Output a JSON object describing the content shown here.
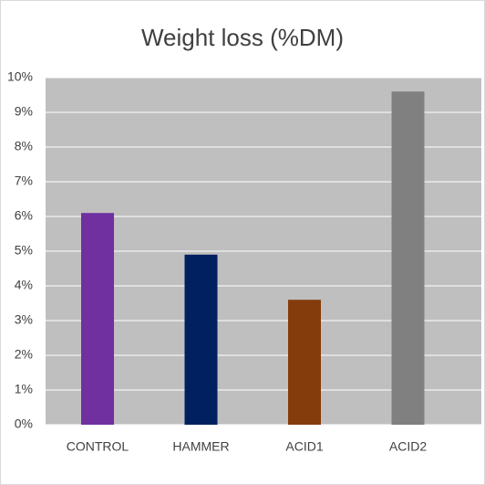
{
  "chart_data": {
    "type": "bar",
    "title": "Weight loss (%DM)",
    "categories": [
      "CONTROL",
      "HAMMER",
      "ACID1",
      "ACID2"
    ],
    "values": [
      6.1,
      4.9,
      3.6,
      9.6
    ],
    "colors": [
      "#7030a0",
      "#002060",
      "#843c0c",
      "#808080"
    ],
    "ylim": [
      0,
      10
    ],
    "yticks": [
      {
        "value": 0,
        "label": "0%"
      },
      {
        "value": 1,
        "label": "1%"
      },
      {
        "value": 2,
        "label": "2%"
      },
      {
        "value": 3,
        "label": "3%"
      },
      {
        "value": 4,
        "label": "4%"
      },
      {
        "value": 5,
        "label": "5%"
      },
      {
        "value": 6,
        "label": "6%"
      },
      {
        "value": 7,
        "label": "7%"
      },
      {
        "value": 8,
        "label": "8%"
      },
      {
        "value": 9,
        "label": "9%"
      },
      {
        "value": 10,
        "label": "10%"
      }
    ],
    "grid": true
  }
}
